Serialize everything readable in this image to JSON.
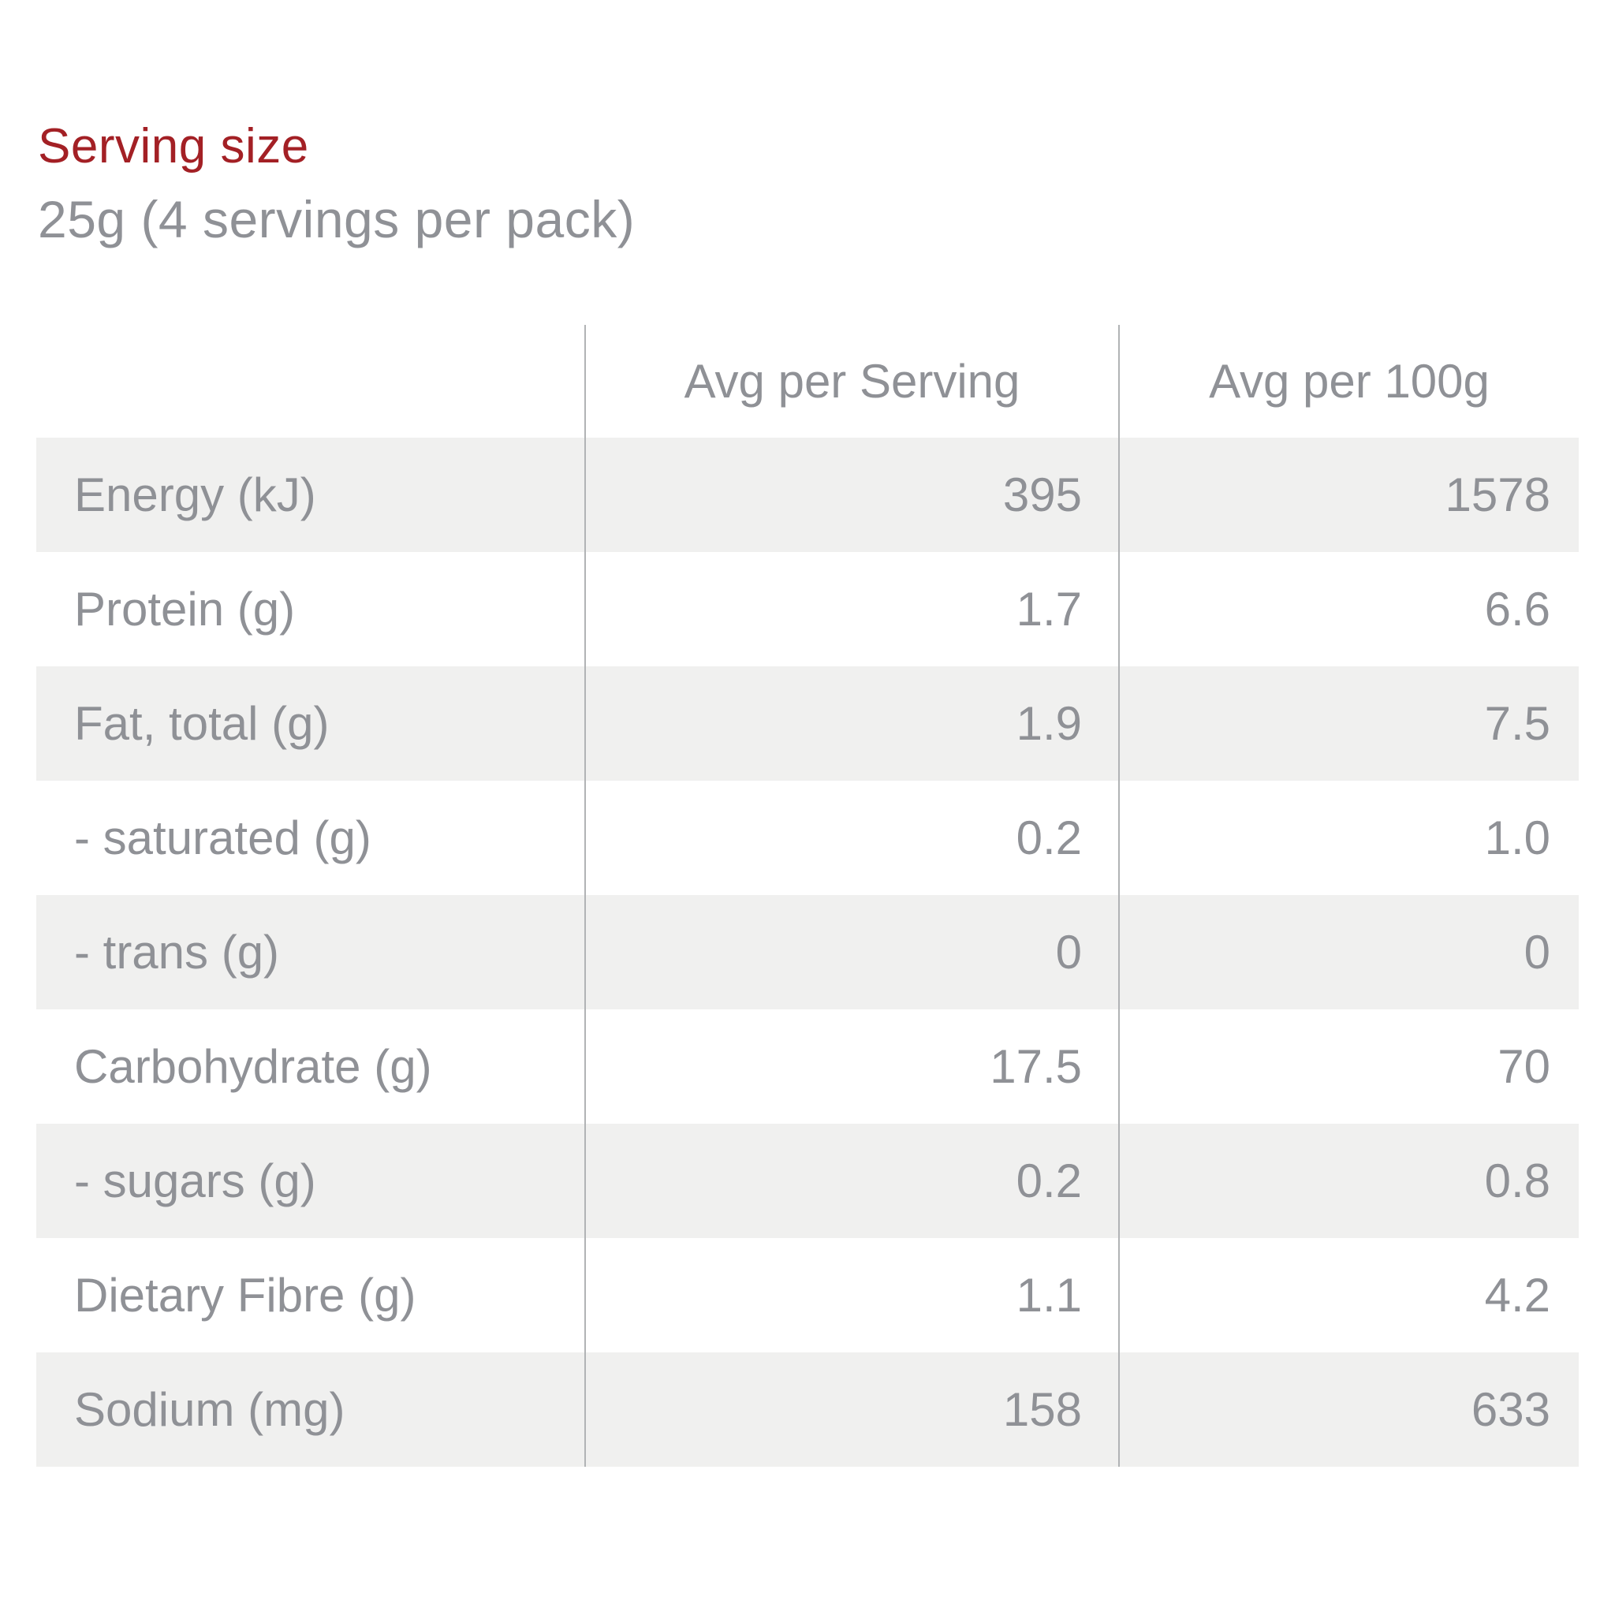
{
  "header": {
    "serving_size_label": "Serving size",
    "serving_size_value": "25g (4 servings per pack)"
  },
  "table": {
    "columns": {
      "label": "",
      "per_serving": "Avg per Serving",
      "per_100g": "Avg per 100g"
    },
    "rows": [
      {
        "label": "Energy (kJ)",
        "per_serving": "395",
        "per_100g": "1578"
      },
      {
        "label": "Protein (g)",
        "per_serving": "1.7",
        "per_100g": "6.6"
      },
      {
        "label": "Fat, total (g)",
        "per_serving": "1.9",
        "per_100g": "7.5"
      },
      {
        "label": "- saturated (g)",
        "per_serving": "0.2",
        "per_100g": "1.0"
      },
      {
        "label": "- trans (g)",
        "per_serving": "0",
        "per_100g": "0"
      },
      {
        "label": "Carbohydrate (g)",
        "per_serving": "17.5",
        "per_100g": "70"
      },
      {
        "label": "- sugars (g)",
        "per_serving": "0.2",
        "per_100g": "0.8"
      },
      {
        "label": "Dietary Fibre (g)",
        "per_serving": "1.1",
        "per_100g": "4.2"
      },
      {
        "label": "Sodium (mg)",
        "per_serving": "158",
        "per_100g": "633"
      }
    ]
  },
  "colors": {
    "accent_red": "#a32025",
    "text_gray": "#8f9196",
    "row_stripe": "#f0f0ef",
    "divider": "#b1b3b5"
  }
}
